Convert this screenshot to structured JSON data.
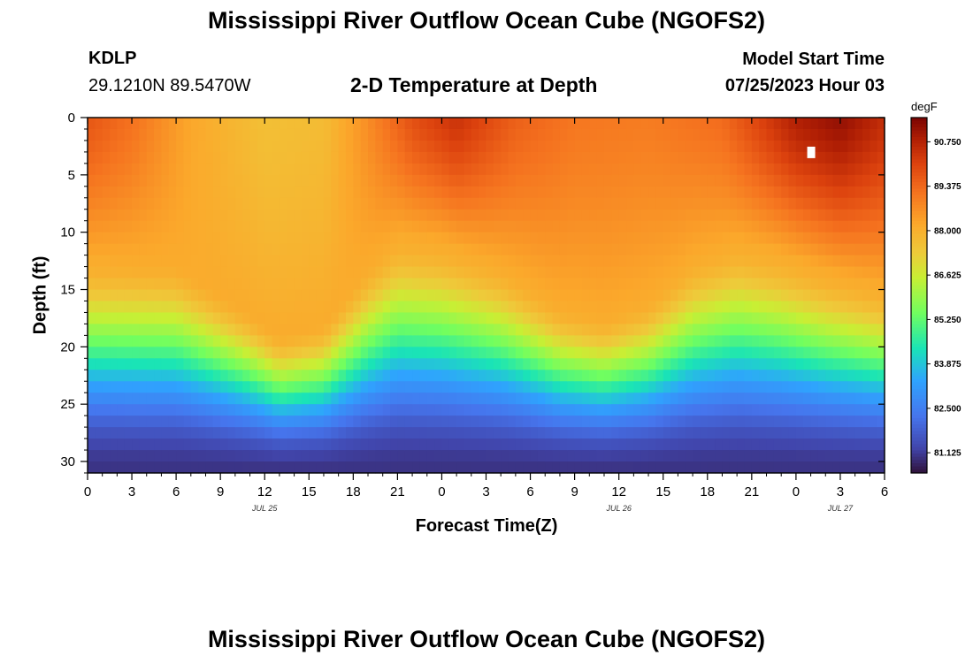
{
  "header": {
    "title": "Mississippi River Outflow Ocean Cube (NGOFS2)",
    "station": "KDLP",
    "coords": "29.1210N  89.5470W",
    "subtitle": "2-D Temperature at Depth",
    "model_start_label": "Model Start Time",
    "model_start_value": "07/25/2023 Hour 03"
  },
  "footer": {
    "title": "Mississippi River Outflow Ocean Cube (NGOFS2)"
  },
  "chart_data": {
    "type": "heatmap",
    "title": "2-D Temperature at Depth",
    "xlabel": "Forecast Time(Z)",
    "ylabel": "Depth (ft)",
    "x_range_hours": [
      0,
      54
    ],
    "x_ticks": [
      "0",
      "3",
      "6",
      "9",
      "12",
      "15",
      "18",
      "21",
      "0",
      "3",
      "6",
      "9",
      "12",
      "15",
      "18",
      "21",
      "0",
      "3",
      "6"
    ],
    "date_labels": [
      {
        "text": "JUL 25",
        "hour": 12
      },
      {
        "text": "JUL 26",
        "hour": 36
      },
      {
        "text": "JUL 27",
        "hour": 51
      }
    ],
    "y_range_ft": [
      0,
      31
    ],
    "y_ticks": [
      0,
      5,
      10,
      15,
      20,
      25,
      30
    ],
    "colorbar": {
      "units": "degF",
      "range": [
        80.5,
        91.5
      ],
      "ticks": [
        "90.750",
        "89.375",
        "88.000",
        "86.625",
        "85.250",
        "83.875",
        "82.500",
        "81.125"
      ]
    },
    "thermocline_depth_ft": [
      {
        "hour": 0,
        "depth": 16.5
      },
      {
        "hour": 6,
        "depth": 16.8
      },
      {
        "hour": 11,
        "depth": 21
      },
      {
        "hour": 13,
        "depth": 23
      },
      {
        "hour": 16,
        "depth": 22
      },
      {
        "hour": 19,
        "depth": 17
      },
      {
        "hour": 21,
        "depth": 14.5
      },
      {
        "hour": 24,
        "depth": 15
      },
      {
        "hour": 28,
        "depth": 17
      },
      {
        "hour": 32,
        "depth": 20.5
      },
      {
        "hour": 35,
        "depth": 21.5
      },
      {
        "hour": 38,
        "depth": 20
      },
      {
        "hour": 41,
        "depth": 16.5
      },
      {
        "hour": 44,
        "depth": 15
      },
      {
        "hour": 47,
        "depth": 16
      },
      {
        "hour": 50,
        "depth": 17.5
      },
      {
        "hour": 54,
        "depth": 19
      }
    ],
    "surface_temp_degF": [
      {
        "hour": 0,
        "temp": 89.7
      },
      {
        "hour": 3,
        "temp": 89.2
      },
      {
        "hour": 7,
        "temp": 88.2
      },
      {
        "hour": 12,
        "temp": 87.6
      },
      {
        "hour": 16,
        "temp": 87.7
      },
      {
        "hour": 19,
        "temp": 88.7
      },
      {
        "hour": 22,
        "temp": 89.8
      },
      {
        "hour": 25,
        "temp": 90.4
      },
      {
        "hour": 29,
        "temp": 89.5
      },
      {
        "hour": 33,
        "temp": 89.1
      },
      {
        "hour": 38,
        "temp": 89.0
      },
      {
        "hour": 43,
        "temp": 89.3
      },
      {
        "hour": 48,
        "temp": 90.8
      },
      {
        "hour": 51,
        "temp": 91.2
      },
      {
        "hour": 54,
        "temp": 90.5
      }
    ],
    "bottom_temp_degF": 81.0,
    "missing_cell": {
      "hour": 49,
      "depth": 3
    }
  }
}
